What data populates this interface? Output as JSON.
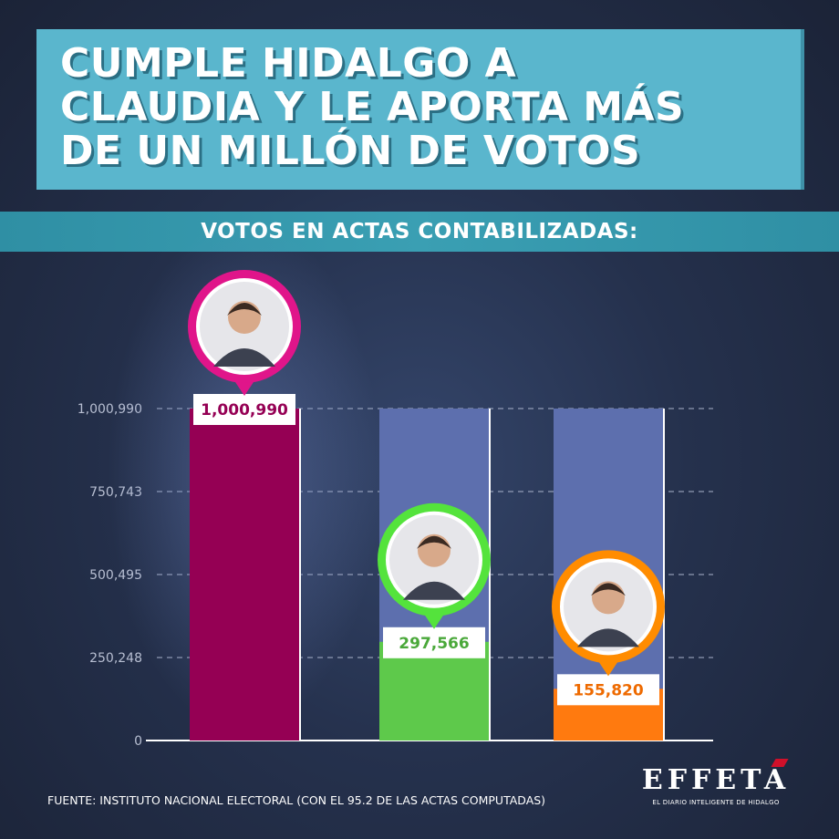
{
  "header": {
    "title_lines": [
      "CUMPLE HIDALGO A",
      "CLAUDIA Y LE APORTA MÁS",
      "DE UN MILLÓN DE VOTOS"
    ],
    "subtitle": "VOTOS EN ACTAS CONTABILIZADAS:"
  },
  "chart_data": {
    "type": "bar",
    "title": "VOTOS EN ACTAS CONTABILIZADAS:",
    "categories": [
      "",
      "",
      ""
    ],
    "values": [
      1000990,
      297566,
      155820
    ],
    "value_labels": [
      "1,000,990",
      "297,566",
      "155,820"
    ],
    "ylim": [
      0,
      1000990
    ],
    "y_ticks": [
      0,
      250248,
      500495,
      750743,
      1000990
    ],
    "y_tick_labels": [
      "0",
      "250,248",
      "500,495",
      "750,743",
      "1,000,990"
    ],
    "grid": true,
    "colors": [
      "#950054",
      "#5ec94b",
      "#ff7a0f"
    ],
    "value_label_colors": [
      "#950054",
      "#4aa83a",
      "#ee6a00"
    ],
    "ring_colors": [
      "#e0158a",
      "#54e33c",
      "#ff8c00"
    ],
    "background_bar_color": "#5d6fae",
    "avatar_icons": [
      "person-avatar-icon",
      "person-avatar-icon",
      "person-avatar-icon"
    ]
  },
  "footer": {
    "source": "FUENTE:  INSTITUTO NACIONAL ELECTORAL (CON EL 95.2 DE LAS ACTAS COMPUTADAS)"
  },
  "brand": {
    "name": "EFFETÁ",
    "tagline": "EL DIARIO INTELIGENTE DE HIDALGO"
  }
}
